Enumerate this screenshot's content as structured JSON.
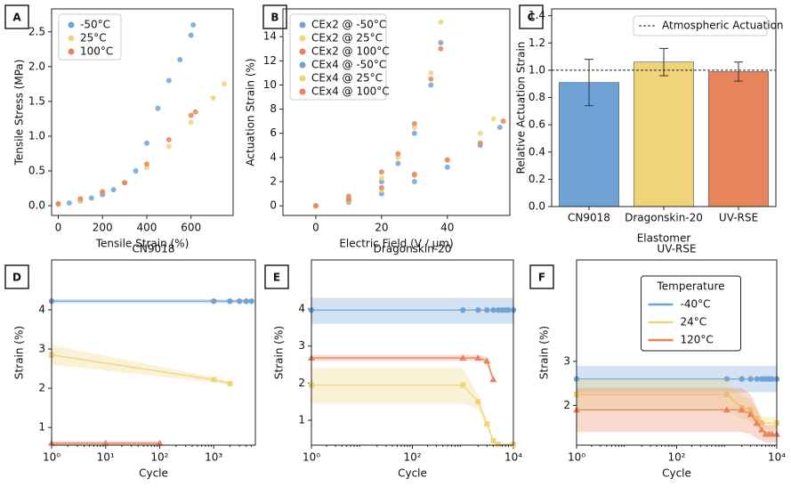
{
  "chart_data": [
    {
      "type": "scatter",
      "panel_label": "A",
      "xlabel": "Tensile Strain (%)",
      "ylabel": "Tensile Stress (MPa)",
      "xlim": [
        -30,
        790
      ],
      "xticks": [
        0,
        200,
        400,
        600
      ],
      "ylim": [
        -0.14,
        2.83
      ],
      "yticks": [
        {
          "value": 0,
          "label": "0.0"
        },
        0.5,
        {
          "value": 1,
          "label": "1.0"
        },
        1.5,
        {
          "value": 2,
          "label": "2.0"
        },
        2.5
      ],
      "legend": "upper left",
      "series": [
        {
          "name": "-50°C",
          "color": "#6fa3d8",
          "x": [
            0,
            50,
            100,
            150,
            200,
            250,
            300,
            350,
            400,
            450,
            500,
            550,
            600,
            610
          ],
          "values": [
            0.02,
            0.04,
            0.07,
            0.11,
            0.16,
            0.23,
            0.33,
            0.5,
            0.9,
            1.4,
            1.8,
            2.1,
            2.45,
            2.6
          ]
        },
        {
          "name": "25°C",
          "color": "#f0d47c",
          "x": [
            0,
            100,
            200,
            300,
            400,
            500,
            600,
            700,
            750
          ],
          "values": [
            0.02,
            0.08,
            0.2,
            0.33,
            0.55,
            0.85,
            1.2,
            1.55,
            1.75
          ]
        },
        {
          "name": "100°C",
          "color": "#e8845c",
          "x": [
            0,
            100,
            200,
            300,
            400,
            500,
            600,
            620
          ],
          "values": [
            0.03,
            0.1,
            0.2,
            0.33,
            0.6,
            0.95,
            1.3,
            1.35
          ]
        }
      ]
    },
    {
      "type": "scatter",
      "panel_label": "B",
      "xlabel": "Electric Field (V / µm)",
      "ylabel": "Actuation Strain (%)",
      "xlim": [
        -10,
        59
      ],
      "xticks": [
        0,
        20,
        40
      ],
      "ylim": [
        -0.8,
        16.3
      ],
      "yticks": [
        0,
        2,
        4,
        6,
        8,
        10,
        12,
        14
      ],
      "legend": "upper left",
      "series": [
        {
          "name": "CEx2 @ -50°C",
          "color": "#6fa3d8",
          "x": [
            0,
            10,
            20,
            25,
            30,
            35,
            38
          ],
          "values": [
            0,
            0.5,
            2,
            3.5,
            6,
            10,
            13.5
          ]
        },
        {
          "name": "CEx2 @ 25°C",
          "color": "#f0d47c",
          "x": [
            0,
            10,
            20,
            25,
            30,
            35,
            38
          ],
          "values": [
            0,
            0.6,
            2.3,
            4,
            6.5,
            11,
            15.2
          ]
        },
        {
          "name": "CEx2 @ 100°C",
          "color": "#e8845c",
          "x": [
            0,
            10,
            20,
            25,
            30,
            35,
            38
          ],
          "values": [
            0,
            0.8,
            2.8,
            4.3,
            6.8,
            10.5,
            13
          ]
        },
        {
          "name": "CEx4 @ -50°C",
          "color": "#6fa3d8",
          "x": [
            0,
            10,
            20,
            30,
            40,
            50,
            56
          ],
          "values": [
            0,
            0.3,
            1,
            2,
            3.2,
            5,
            6.5
          ]
        },
        {
          "name": "CEx4 @ 25°C",
          "color": "#f0d47c",
          "x": [
            0,
            10,
            20,
            30,
            40,
            50,
            54
          ],
          "values": [
            0,
            0.4,
            1.3,
            2.5,
            3.8,
            6,
            7.2
          ]
        },
        {
          "name": "CEx4 @ 100°C",
          "color": "#e8845c",
          "x": [
            0,
            10,
            20,
            30,
            40,
            50,
            57
          ],
          "values": [
            0,
            0.5,
            1.5,
            2.6,
            3.8,
            5.2,
            7
          ]
        }
      ]
    },
    {
      "type": "bar",
      "panel_label": "C",
      "xlabel": "Elastomer",
      "ylabel": "Relative Actuation Strain",
      "categories": [
        "CN9018",
        "Dragonskin-20",
        "UV-RSE"
      ],
      "values": [
        0.91,
        1.06,
        0.99
      ],
      "errors": [
        0.17,
        0.1,
        0.07
      ],
      "colors": [
        "#6fa3d8",
        "#f0d47c",
        "#e8845c"
      ],
      "ylim": [
        0,
        1.45
      ],
      "yticks": [
        {
          "value": 0,
          "label": "0.0"
        },
        0.2,
        0.4,
        0.6,
        0.8,
        {
          "value": 1,
          "label": "1.0"
        },
        1.2,
        1.4
      ],
      "reference": {
        "value": 1,
        "label": "Atmospheric Actuation"
      },
      "legend": "upper right"
    },
    {
      "type": "line",
      "panel_label": "D",
      "title": "CN9018",
      "xlabel": "Cycle",
      "ylabel": "Strain (%)",
      "xscale": "log",
      "xlim": [
        1,
        5900
      ],
      "xticks": [
        {
          "value": 1,
          "label": "10⁰"
        },
        {
          "value": 10,
          "label": "10¹"
        },
        {
          "value": 100,
          "label": "10²"
        },
        {
          "value": 1000,
          "label": "10³"
        }
      ],
      "ylim": [
        0.55,
        5.27
      ],
      "yticks": [
        1,
        2,
        3,
        4
      ],
      "series": [
        {
          "color": "#6fa3d8",
          "marker": "circle",
          "x": [
            1,
            1000,
            2000,
            3000,
            4000,
            5000
          ],
          "values": [
            4.22,
            4.22,
            4.22,
            4.22,
            4.22,
            4.22
          ],
          "lower": [
            4.17,
            4.17,
            4.17,
            4.17,
            4.17,
            4.17
          ],
          "upper": [
            4.27,
            4.27,
            4.27,
            4.27,
            4.27,
            4.27
          ]
        },
        {
          "color": "#f0d47c",
          "marker": "square",
          "x": [
            1,
            1000,
            2000
          ],
          "values": [
            2.85,
            2.22,
            2.12
          ],
          "lower": [
            2.6,
            2.15,
            2.08
          ],
          "upper": [
            3.1,
            2.28,
            2.16
          ]
        },
        {
          "color": "#e8845c",
          "marker": "triangle",
          "x": [
            1,
            10,
            100
          ],
          "values": [
            0.6,
            0.6,
            0.6
          ],
          "lower": [
            0.55,
            0.55,
            0.55
          ],
          "upper": [
            0.65,
            0.65,
            0.65
          ]
        }
      ]
    },
    {
      "type": "line",
      "panel_label": "E",
      "title": "Dragonskin-20",
      "xlabel": "Cycle",
      "ylabel": "Strain (%)",
      "xscale": "log",
      "xlim": [
        1,
        10000
      ],
      "xticks": [
        {
          "value": 1,
          "label": "10⁰"
        },
        {
          "value": 100,
          "label": "10²"
        },
        {
          "value": 10000,
          "label": "10⁴"
        }
      ],
      "ylim": [
        0.33,
        5.32
      ],
      "yticks": [
        1,
        2,
        3,
        4
      ],
      "series": [
        {
          "color": "#6fa3d8",
          "marker": "circle",
          "x": [
            1,
            1000,
            2000,
            3000,
            4000,
            5000,
            6000,
            7000,
            8000,
            10000
          ],
          "values": [
            3.97,
            3.97,
            3.97,
            3.97,
            3.97,
            3.97,
            3.97,
            3.97,
            3.97,
            3.97
          ],
          "lower": [
            3.6,
            3.6,
            3.6,
            3.6,
            3.6,
            3.6,
            3.6,
            3.6,
            3.6,
            3.6
          ],
          "upper": [
            4.3,
            4.3,
            4.3,
            4.3,
            4.3,
            4.3,
            4.3,
            4.3,
            4.3,
            4.3
          ]
        },
        {
          "color": "#f0d47c",
          "marker": "square",
          "x": [
            1,
            1000,
            2000,
            3000,
            4000,
            5000,
            10000
          ],
          "values": [
            1.95,
            1.95,
            1.5,
            0.9,
            0.45,
            0.35,
            0.35
          ],
          "lower": [
            1.45,
            1.45,
            1.3,
            0.8,
            0.4,
            0.33,
            0.33
          ],
          "upper": [
            2.4,
            2.4,
            1.7,
            1.0,
            0.5,
            0.38,
            0.38
          ]
        },
        {
          "color": "#e8845c",
          "marker": "triangle",
          "x": [
            1,
            1000,
            2000,
            3000,
            4000
          ],
          "values": [
            2.68,
            2.68,
            2.68,
            2.6,
            2.1
          ],
          "lower": [
            2.6,
            2.6,
            2.6,
            2.5,
            2.0
          ],
          "upper": [
            2.76,
            2.76,
            2.76,
            2.7,
            2.2
          ]
        }
      ]
    },
    {
      "type": "line",
      "panel_label": "F",
      "title": "UV-RSE",
      "xlabel": "Cycle",
      "ylabel": "Strain (%)",
      "xscale": "log",
      "xlim": [
        1,
        10000
      ],
      "xticks": [
        {
          "value": 1,
          "label": "10⁰"
        },
        {
          "value": 100,
          "label": "10²"
        },
        {
          "value": 10000,
          "label": "10⁴"
        }
      ],
      "ylim": [
        1.1,
        5.3
      ],
      "yticks": [
        2,
        3
      ],
      "legend": "upper center",
      "legend_title": "Temperature",
      "series": [
        {
          "name": "-40°C",
          "color": "#6fa3d8",
          "marker": "circle",
          "x": [
            1,
            1000,
            2000,
            3000,
            4000,
            5000,
            6000,
            7000,
            8000,
            10000
          ],
          "values": [
            2.6,
            2.6,
            2.6,
            2.6,
            2.6,
            2.6,
            2.6,
            2.6,
            2.6,
            2.6
          ],
          "lower": [
            2.3,
            2.3,
            2.3,
            2.3,
            2.3,
            2.3,
            2.3,
            2.3,
            2.3,
            2.3
          ],
          "upper": [
            2.9,
            2.9,
            2.9,
            2.9,
            2.9,
            2.9,
            2.9,
            2.9,
            2.9,
            2.9
          ]
        },
        {
          "name": "24°C",
          "color": "#f0d47c",
          "marker": "square",
          "x": [
            1,
            1000,
            2000,
            3000,
            4000,
            5000,
            10000
          ],
          "values": [
            2.25,
            2.25,
            1.95,
            1.9,
            1.7,
            1.6,
            1.6
          ],
          "lower": [
            1.9,
            1.9,
            1.7,
            1.65,
            1.5,
            1.45,
            1.45
          ],
          "upper": [
            2.6,
            2.6,
            2.2,
            2.15,
            1.9,
            1.75,
            1.75
          ]
        },
        {
          "name": "120°C",
          "color": "#e8845c",
          "marker": "triangle",
          "x": [
            1,
            1000,
            2000,
            3000,
            4000,
            5000,
            6000,
            7000,
            8000,
            10000
          ],
          "values": [
            1.9,
            1.9,
            1.9,
            1.8,
            1.6,
            1.45,
            1.35,
            1.35,
            1.35,
            1.35
          ],
          "lower": [
            1.4,
            1.4,
            1.4,
            1.35,
            1.25,
            1.2,
            1.15,
            1.15,
            1.15,
            1.15
          ],
          "upper": [
            2.4,
            2.4,
            2.4,
            2.25,
            1.95,
            1.7,
            1.55,
            1.55,
            1.55,
            1.55
          ]
        }
      ]
    }
  ]
}
